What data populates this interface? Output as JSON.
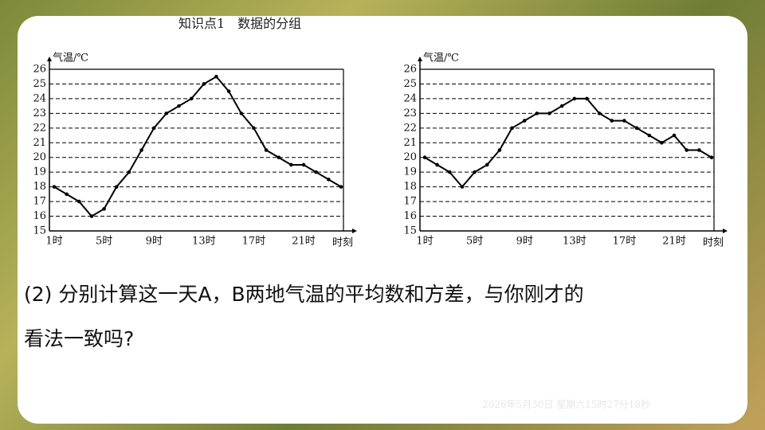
{
  "section_title": "知识点1　数据的分组",
  "question": [
    "(2) 分别计算这一天A，B两地气温的平均数和方差，与你刚才的",
    "看法一致吗?"
  ],
  "timestamp": "2026年5月30日 星期六15时27分18秒",
  "chart_data": [
    {
      "type": "line",
      "y_label": "气温/℃",
      "x_label": "时刻",
      "color": "#000000",
      "grid": true,
      "categories": [
        "1时",
        null,
        null,
        null,
        "5时",
        null,
        null,
        null,
        "9时",
        null,
        null,
        null,
        "13时",
        null,
        null,
        null,
        "17时",
        null,
        null,
        null,
        "21时",
        null,
        null,
        null
      ],
      "values": [
        18,
        17.5,
        17,
        16,
        16.5,
        18,
        19,
        20.5,
        22,
        23,
        23.5,
        24,
        25,
        25.5,
        24.5,
        23,
        22,
        20.5,
        20,
        19.5,
        19.5,
        19,
        18.5,
        18
      ],
      "ylim": [
        15,
        26
      ],
      "yticks": [
        15,
        16,
        17,
        18,
        19,
        20,
        21,
        22,
        23,
        24,
        25,
        26
      ]
    },
    {
      "type": "line",
      "y_label": "气温/℃",
      "x_label": "时刻",
      "color": "#000000",
      "grid": true,
      "categories": [
        "1时",
        null,
        null,
        null,
        "5时",
        null,
        null,
        null,
        "9时",
        null,
        null,
        null,
        "13时",
        null,
        null,
        null,
        "17时",
        null,
        null,
        null,
        "21时",
        null,
        null,
        null
      ],
      "values": [
        20,
        19.5,
        19,
        18,
        19,
        19.5,
        20.5,
        22,
        22.5,
        23,
        23,
        23.5,
        24,
        24,
        23,
        22.5,
        22.5,
        22,
        21.5,
        21,
        21.5,
        20.5,
        20.5,
        20
      ],
      "ylim": [
        15,
        26
      ],
      "yticks": [
        15,
        16,
        17,
        18,
        19,
        20,
        21,
        22,
        23,
        24,
        25,
        26
      ]
    }
  ]
}
